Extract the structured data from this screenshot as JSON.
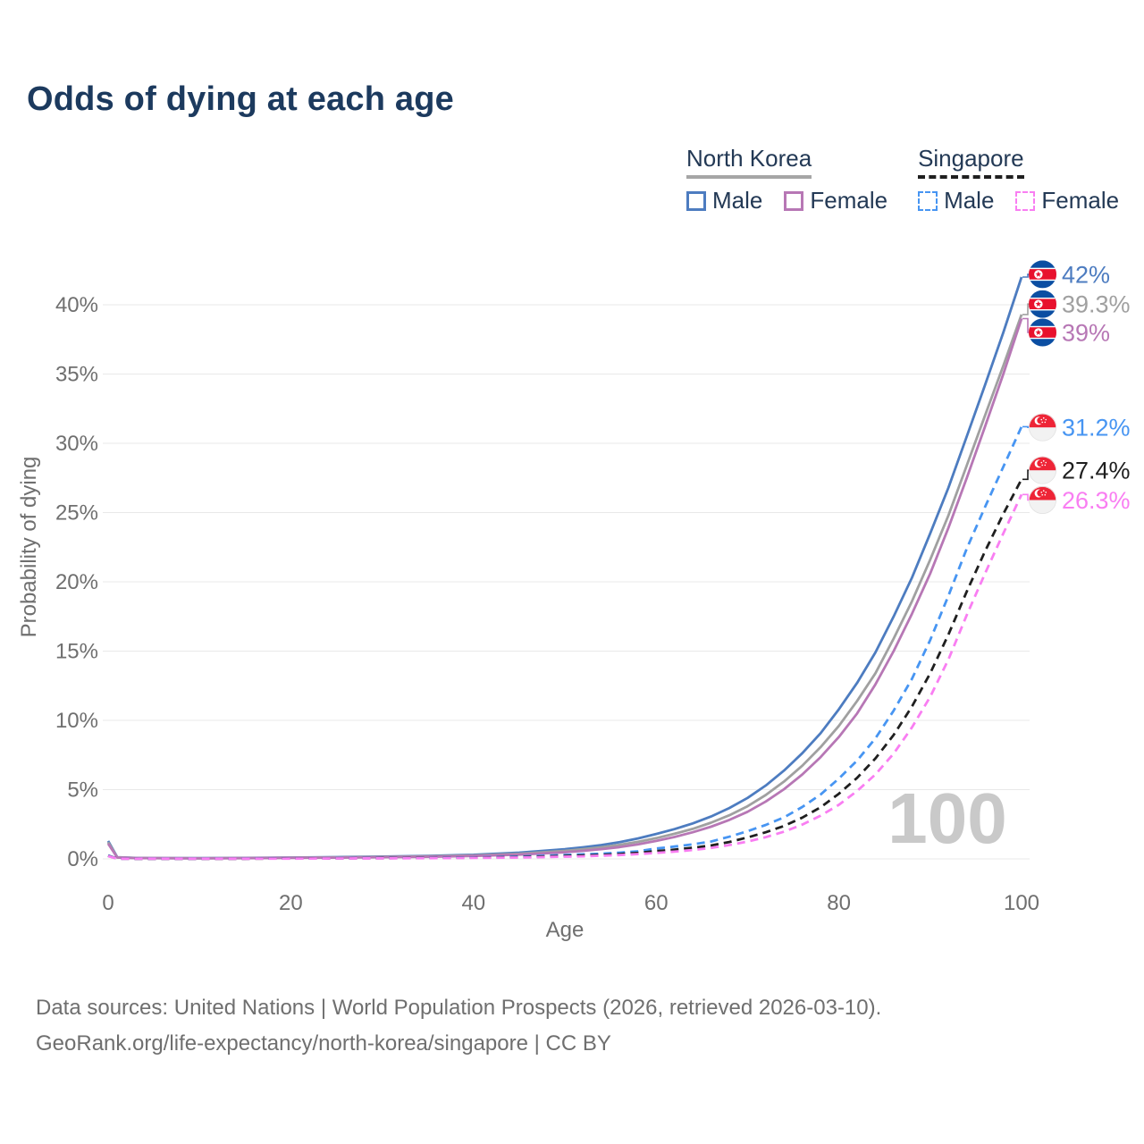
{
  "title": "Odds of dying at each age",
  "legend": {
    "groups": [
      {
        "country": "North Korea",
        "line_style": "solid",
        "underline_color": "#a6a6a6",
        "items": [
          {
            "label": "Male",
            "color": "#4d7cc0",
            "dashed": false
          },
          {
            "label": "Female",
            "color": "#b777b5",
            "dashed": false
          }
        ]
      },
      {
        "country": "Singapore",
        "line_style": "dashed",
        "underline_color": "#1f1f1f",
        "items": [
          {
            "label": "Male",
            "color": "#4795f2",
            "dashed": true
          },
          {
            "label": "Female",
            "color": "#f97ef2",
            "dashed": true
          }
        ]
      }
    ]
  },
  "chart_data": {
    "type": "line",
    "title": "Odds of dying at each age",
    "xlabel": "Age",
    "ylabel": "Probability of dying",
    "xlim": [
      0,
      100
    ],
    "ylim_pct": [
      0,
      42
    ],
    "xticks": [
      0,
      20,
      40,
      60,
      80,
      100
    ],
    "yticks_pct": [
      0,
      5,
      10,
      15,
      20,
      25,
      30,
      35,
      40
    ],
    "grid": "horizontal",
    "legend_position": "top-right",
    "watermark": "100",
    "ages": [
      0,
      1,
      3,
      5,
      10,
      15,
      20,
      25,
      30,
      35,
      40,
      45,
      50,
      52,
      54,
      56,
      58,
      60,
      62,
      64,
      66,
      68,
      70,
      72,
      74,
      76,
      78,
      80,
      82,
      84,
      86,
      88,
      90,
      92,
      94,
      96,
      98,
      100
    ],
    "series": [
      {
        "id": "nk-male",
        "name": "North Korea Male",
        "country": "North Korea",
        "sex": "Male",
        "color": "#4d7cc0",
        "dashed": false,
        "flag": "kp",
        "end_label": "42%",
        "end_value_pct": 42,
        "label_pct": 42.2,
        "values_pct": [
          1.3,
          0.12,
          0.07,
          0.06,
          0.05,
          0.07,
          0.1,
          0.13,
          0.17,
          0.22,
          0.3,
          0.45,
          0.7,
          0.84,
          1.0,
          1.21,
          1.48,
          1.8,
          2.15,
          2.56,
          3.06,
          3.67,
          4.4,
          5.3,
          6.38,
          7.63,
          9.08,
          10.8,
          12.7,
          14.9,
          17.5,
          20.3,
          23.5,
          26.8,
          30.5,
          34.2,
          38.0,
          42.0
        ]
      },
      {
        "id": "nk-total",
        "name": "North Korea Both sexes",
        "country": "North Korea",
        "sex": "Both",
        "color": "#a0a0a0",
        "dashed": false,
        "flag": "kp",
        "end_label": "39.3%",
        "end_value_pct": 39.3,
        "label_pct": 40.05,
        "values_pct": [
          1.2,
          0.11,
          0.065,
          0.055,
          0.045,
          0.06,
          0.085,
          0.11,
          0.14,
          0.18,
          0.25,
          0.37,
          0.58,
          0.7,
          0.84,
          1.01,
          1.23,
          1.5,
          1.81,
          2.17,
          2.61,
          3.15,
          3.8,
          4.61,
          5.59,
          6.73,
          8.07,
          9.6,
          11.4,
          13.4,
          15.9,
          18.6,
          21.6,
          24.8,
          28.4,
          32.0,
          35.6,
          39.3
        ]
      },
      {
        "id": "nk-female",
        "name": "North Korea Female",
        "country": "North Korea",
        "sex": "Female",
        "color": "#b777b5",
        "dashed": false,
        "flag": "kp",
        "end_label": "39%",
        "end_value_pct": 39,
        "label_pct": 38.0,
        "values_pct": [
          1.1,
          0.1,
          0.06,
          0.05,
          0.04,
          0.05,
          0.07,
          0.09,
          0.12,
          0.15,
          0.21,
          0.31,
          0.48,
          0.58,
          0.7,
          0.85,
          1.05,
          1.3,
          1.58,
          1.92,
          2.32,
          2.81,
          3.4,
          4.14,
          5.03,
          6.1,
          7.35,
          8.8,
          10.5,
          12.6,
          15.0,
          17.7,
          20.6,
          23.9,
          27.5,
          31.2,
          35.0,
          39.0
        ]
      },
      {
        "id": "sg-male",
        "name": "Singapore Male",
        "country": "Singapore",
        "sex": "Male",
        "color": "#4795f2",
        "dashed": true,
        "flag": "sg",
        "end_label": "31.2%",
        "end_value_pct": 31.2,
        "label_pct": 31.15,
        "values_pct": [
          0.25,
          0.02,
          0.012,
          0.01,
          0.01,
          0.02,
          0.04,
          0.05,
          0.06,
          0.08,
          0.11,
          0.17,
          0.28,
          0.33,
          0.38,
          0.45,
          0.55,
          0.75,
          0.89,
          1.05,
          1.25,
          1.6,
          2.0,
          2.45,
          3.0,
          3.75,
          4.65,
          5.8,
          7.1,
          8.7,
          10.7,
          13.0,
          15.8,
          19.0,
          22.4,
          25.4,
          28.3,
          31.2
        ]
      },
      {
        "id": "sg-total",
        "name": "Singapore Both sexes",
        "country": "Singapore",
        "sex": "Both",
        "color": "#1f1f1f",
        "dashed": true,
        "flag": "sg",
        "end_label": "27.4%",
        "end_value_pct": 27.4,
        "label_pct": 28.05,
        "values_pct": [
          0.22,
          0.018,
          0.01,
          0.009,
          0.009,
          0.015,
          0.03,
          0.04,
          0.05,
          0.065,
          0.09,
          0.13,
          0.21,
          0.25,
          0.29,
          0.35,
          0.43,
          0.56,
          0.67,
          0.8,
          0.97,
          1.22,
          1.55,
          1.92,
          2.38,
          2.98,
          3.73,
          4.7,
          5.85,
          7.25,
          8.95,
          11.0,
          13.4,
          16.2,
          19.3,
          22.2,
          24.9,
          27.4
        ]
      },
      {
        "id": "sg-female",
        "name": "Singapore Female",
        "country": "Singapore",
        "sex": "Female",
        "color": "#f97ef2",
        "dashed": true,
        "flag": "sg",
        "end_label": "26.3%",
        "end_value_pct": 26.3,
        "label_pct": 25.9,
        "values_pct": [
          0.2,
          0.015,
          0.009,
          0.008,
          0.008,
          0.012,
          0.02,
          0.03,
          0.04,
          0.05,
          0.07,
          0.1,
          0.16,
          0.19,
          0.23,
          0.28,
          0.35,
          0.43,
          0.52,
          0.64,
          0.79,
          1.0,
          1.25,
          1.57,
          1.97,
          2.48,
          3.12,
          3.9,
          4.9,
          6.1,
          7.6,
          9.5,
          11.7,
          14.4,
          17.6,
          20.6,
          23.5,
          26.3
        ]
      }
    ]
  },
  "footer": {
    "line1": "Data sources: United Nations | World Population Prospects (2026, retrieved 2026-03-10).",
    "line2": "GeoRank.org/life-expectancy/north-korea/singapore | CC BY"
  }
}
